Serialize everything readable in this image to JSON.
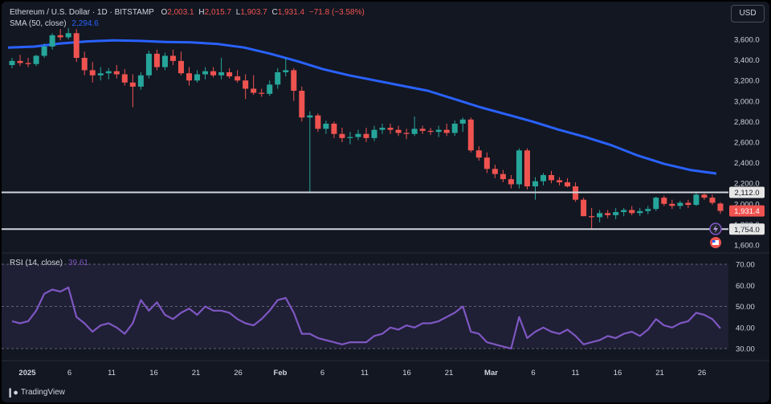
{
  "header": {
    "symbol": "Ethereum / U.S. Dollar · 1D · BITSTAMP",
    "o_label": "O",
    "o_value": "2,003.1",
    "h_label": "H",
    "h_value": "2,015.7",
    "l_label": "L",
    "l_value": "1,903.7",
    "c_label": "C",
    "c_value": "1,931.4",
    "change": "−71.8 (−3.58%)",
    "sma_label": "SMA (50, close)",
    "sma_value": "2,294.6",
    "rsi_label": "RSI (14, close)",
    "rsi_value": "39.61",
    "currency_button": "USD",
    "brand": "TradingView"
  },
  "colors": {
    "up": "#26a69a",
    "down": "#ef5350",
    "sma": "#2962ff",
    "rsi": "#7e57c2",
    "level": "#d1d4dc"
  },
  "chart_data": [
    {
      "type": "candlestick",
      "title": "Ethereum / U.S. Dollar · 1D · BITSTAMP",
      "ylim": [
        1560,
        3720
      ],
      "y_ticks": [
        "1,600.0",
        "1,800.0",
        "2,000.0",
        "2,200.0",
        "2,400.0",
        "2,600.0",
        "2,800.0",
        "3,000.0",
        "3,200.0",
        "3,400.0",
        "3,600.0"
      ],
      "x_ticks": [
        "2025",
        "6",
        "11",
        "16",
        "21",
        "26",
        "Feb",
        "6",
        "11",
        "16",
        "21",
        "Mar",
        "6",
        "11",
        "16",
        "21",
        "26"
      ],
      "grid": false,
      "ohlc": [
        [
          3350,
          3420,
          3320,
          3390
        ],
        [
          3390,
          3450,
          3340,
          3370
        ],
        [
          3370,
          3420,
          3330,
          3360
        ],
        [
          3360,
          3450,
          3340,
          3440
        ],
        [
          3440,
          3560,
          3420,
          3530
        ],
        [
          3530,
          3660,
          3500,
          3640
        ],
        [
          3640,
          3700,
          3590,
          3620
        ],
        [
          3620,
          3710,
          3600,
          3660
        ],
        [
          3660,
          3700,
          3380,
          3420
        ],
        [
          3420,
          3480,
          3250,
          3300
        ],
        [
          3300,
          3380,
          3180,
          3250
        ],
        [
          3250,
          3330,
          3200,
          3270
        ],
        [
          3270,
          3320,
          3210,
          3290
        ],
        [
          3290,
          3350,
          3220,
          3260
        ],
        [
          3260,
          3310,
          3150,
          3180
        ],
        [
          3180,
          3260,
          2940,
          3140
        ],
        [
          3140,
          3280,
          3110,
          3250
        ],
        [
          3250,
          3490,
          3220,
          3460
        ],
        [
          3460,
          3500,
          3300,
          3330
        ],
        [
          3330,
          3470,
          3300,
          3440
        ],
        [
          3440,
          3500,
          3350,
          3390
        ],
        [
          3390,
          3480,
          3250,
          3270
        ],
        [
          3270,
          3330,
          3150,
          3200
        ],
        [
          3200,
          3300,
          3180,
          3260
        ],
        [
          3260,
          3330,
          3210,
          3290
        ],
        [
          3290,
          3330,
          3230,
          3250
        ],
        [
          3250,
          3420,
          3210,
          3280
        ],
        [
          3280,
          3320,
          3220,
          3240
        ],
        [
          3240,
          3300,
          3180,
          3200
        ],
        [
          3200,
          3260,
          3020,
          3120
        ],
        [
          3120,
          3250,
          3060,
          3080
        ],
        [
          3080,
          3120,
          3040,
          3070
        ],
        [
          3070,
          3200,
          3050,
          3160
        ],
        [
          3160,
          3320,
          3120,
          3280
        ],
        [
          3280,
          3420,
          3240,
          3300
        ],
        [
          3300,
          3320,
          3000,
          3100
        ],
        [
          3100,
          3140,
          2800,
          2840
        ],
        [
          2840,
          2900,
          2120,
          2860
        ],
        [
          2860,
          2880,
          2700,
          2730
        ],
        [
          2730,
          2810,
          2680,
          2780
        ],
        [
          2780,
          2800,
          2640,
          2680
        ],
        [
          2680,
          2740,
          2600,
          2640
        ],
        [
          2640,
          2700,
          2580,
          2650
        ],
        [
          2650,
          2720,
          2620,
          2680
        ],
        [
          2680,
          2740,
          2600,
          2640
        ],
        [
          2640,
          2760,
          2610,
          2720
        ],
        [
          2720,
          2780,
          2680,
          2740
        ],
        [
          2740,
          2780,
          2680,
          2720
        ],
        [
          2720,
          2760,
          2660,
          2690
        ],
        [
          2690,
          2730,
          2630,
          2680
        ],
        [
          2680,
          2850,
          2660,
          2730
        ],
        [
          2730,
          2760,
          2680,
          2710
        ],
        [
          2710,
          2740,
          2670,
          2700
        ],
        [
          2700,
          2760,
          2650,
          2720
        ],
        [
          2720,
          2780,
          2660,
          2690
        ],
        [
          2690,
          2810,
          2660,
          2780
        ],
        [
          2780,
          2840,
          2700,
          2820
        ],
        [
          2820,
          2840,
          2500,
          2520
        ],
        [
          2520,
          2560,
          2420,
          2450
        ],
        [
          2450,
          2500,
          2300,
          2340
        ],
        [
          2340,
          2380,
          2250,
          2290
        ],
        [
          2290,
          2330,
          2210,
          2240
        ],
        [
          2240,
          2280,
          2150,
          2190
        ],
        [
          2190,
          2540,
          2150,
          2520
        ],
        [
          2520,
          2540,
          2140,
          2170
        ],
        [
          2170,
          2260,
          2040,
          2220
        ],
        [
          2220,
          2300,
          2180,
          2280
        ],
        [
          2280,
          2320,
          2200,
          2230
        ],
        [
          2230,
          2260,
          2180,
          2210
        ],
        [
          2210,
          2250,
          2160,
          2170
        ],
        [
          2170,
          2210,
          2020,
          2040
        ],
        [
          2040,
          2060,
          1880,
          1880
        ],
        [
          1880,
          1960,
          1760,
          1870
        ],
        [
          1870,
          1940,
          1820,
          1910
        ],
        [
          1910,
          1940,
          1860,
          1890
        ],
        [
          1890,
          1960,
          1850,
          1920
        ],
        [
          1920,
          1960,
          1880,
          1940
        ],
        [
          1940,
          1980,
          1890,
          1910
        ],
        [
          1910,
          1960,
          1880,
          1930
        ],
        [
          1930,
          1980,
          1900,
          1950
        ],
        [
          1950,
          2070,
          1930,
          2060
        ],
        [
          2060,
          2080,
          1980,
          2000
        ],
        [
          2000,
          2040,
          1950,
          1980
        ],
        [
          1980,
          2030,
          1950,
          2010
        ],
        [
          2010,
          2040,
          1960,
          1990
        ],
        [
          1990,
          2110,
          1980,
          2090
        ],
        [
          2090,
          2100,
          2040,
          2060
        ],
        [
          2060,
          2090,
          1990,
          2010
        ],
        [
          2003.1,
          2015.7,
          1903.7,
          1931.4
        ]
      ],
      "sma_50": [
        3520,
        3530,
        3560,
        3580,
        3590,
        3585,
        3575,
        3570,
        3555,
        3520,
        3460,
        3390,
        3310,
        3250,
        3200,
        3150,
        3100,
        3020,
        2940,
        2870,
        2800,
        2720,
        2650,
        2570,
        2470,
        2390,
        2330,
        2294.6
      ],
      "levels": [
        {
          "value": 2112.0,
          "label": "2,112.0"
        },
        {
          "value": 1754.0,
          "label": "1,754.0"
        }
      ],
      "last_price": {
        "value": 1931.4,
        "label": "1,931.4"
      }
    },
    {
      "type": "line",
      "title": "RSI (14, close)",
      "ylim": [
        25,
        72
      ],
      "y_ticks": [
        "30.00",
        "40.00",
        "50.00",
        "60.00",
        "70.00"
      ],
      "band": [
        30,
        70
      ],
      "values": [
        43,
        42,
        43,
        48,
        56,
        58,
        57,
        59,
        45,
        42,
        38,
        41,
        42,
        40,
        37,
        42,
        53,
        48,
        52,
        46,
        44,
        47,
        49,
        46,
        50,
        48,
        48,
        47,
        44,
        42,
        41,
        44,
        48,
        53,
        54,
        47,
        37,
        37,
        35,
        34,
        33,
        32,
        33,
        33,
        33,
        36,
        37,
        40,
        39,
        41,
        40,
        42,
        42,
        43,
        45,
        47,
        50,
        38,
        37,
        33,
        32,
        31,
        30,
        45,
        35,
        38,
        40,
        38,
        37,
        39,
        36,
        32,
        33,
        34,
        36,
        35,
        37,
        38,
        36,
        39,
        44,
        41,
        40,
        42,
        43,
        47,
        46,
        44,
        39.61
      ]
    }
  ]
}
